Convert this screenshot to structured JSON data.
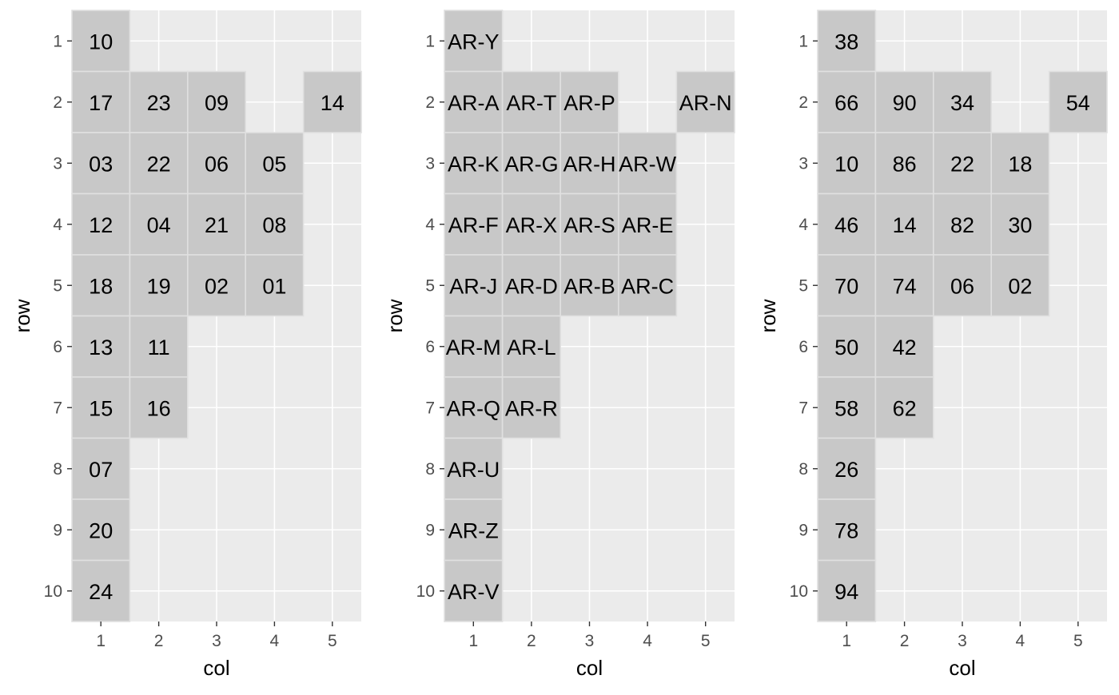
{
  "chart_data": [
    {
      "type": "heatmap",
      "xlabel": "col",
      "ylabel": "row",
      "x_ticks": [
        1,
        2,
        3,
        4,
        5
      ],
      "y_ticks": [
        1,
        2,
        3,
        4,
        5,
        6,
        7,
        8,
        9,
        10
      ],
      "xlim": [
        0.5,
        5.5
      ],
      "ylim": [
        10.5,
        0.5
      ],
      "grid": true,
      "cells": [
        {
          "row": 1,
          "col": 1,
          "label": "10"
        },
        {
          "row": 2,
          "col": 1,
          "label": "17"
        },
        {
          "row": 2,
          "col": 2,
          "label": "23"
        },
        {
          "row": 2,
          "col": 3,
          "label": "09"
        },
        {
          "row": 2,
          "col": 5,
          "label": "14"
        },
        {
          "row": 3,
          "col": 1,
          "label": "03"
        },
        {
          "row": 3,
          "col": 2,
          "label": "22"
        },
        {
          "row": 3,
          "col": 3,
          "label": "06"
        },
        {
          "row": 3,
          "col": 4,
          "label": "05"
        },
        {
          "row": 4,
          "col": 1,
          "label": "12"
        },
        {
          "row": 4,
          "col": 2,
          "label": "04"
        },
        {
          "row": 4,
          "col": 3,
          "label": "21"
        },
        {
          "row": 4,
          "col": 4,
          "label": "08"
        },
        {
          "row": 5,
          "col": 1,
          "label": "18"
        },
        {
          "row": 5,
          "col": 2,
          "label": "19"
        },
        {
          "row": 5,
          "col": 3,
          "label": "02"
        },
        {
          "row": 5,
          "col": 4,
          "label": "01"
        },
        {
          "row": 6,
          "col": 1,
          "label": "13"
        },
        {
          "row": 6,
          "col": 2,
          "label": "11"
        },
        {
          "row": 7,
          "col": 1,
          "label": "15"
        },
        {
          "row": 7,
          "col": 2,
          "label": "16"
        },
        {
          "row": 8,
          "col": 1,
          "label": "07"
        },
        {
          "row": 9,
          "col": 1,
          "label": "20"
        },
        {
          "row": 10,
          "col": 1,
          "label": "24"
        }
      ]
    },
    {
      "type": "heatmap",
      "xlabel": "col",
      "ylabel": "row",
      "x_ticks": [
        1,
        2,
        3,
        4,
        5
      ],
      "y_ticks": [
        1,
        2,
        3,
        4,
        5,
        6,
        7,
        8,
        9,
        10
      ],
      "xlim": [
        0.5,
        5.5
      ],
      "ylim": [
        10.5,
        0.5
      ],
      "grid": true,
      "cells": [
        {
          "row": 1,
          "col": 1,
          "label": "AR-Y"
        },
        {
          "row": 2,
          "col": 1,
          "label": "AR-A"
        },
        {
          "row": 2,
          "col": 2,
          "label": "AR-T"
        },
        {
          "row": 2,
          "col": 3,
          "label": "AR-P"
        },
        {
          "row": 2,
          "col": 5,
          "label": "AR-N"
        },
        {
          "row": 3,
          "col": 1,
          "label": "AR-K"
        },
        {
          "row": 3,
          "col": 2,
          "label": "AR-G"
        },
        {
          "row": 3,
          "col": 3,
          "label": "AR-H"
        },
        {
          "row": 3,
          "col": 4,
          "label": "AR-W"
        },
        {
          "row": 4,
          "col": 1,
          "label": "AR-F"
        },
        {
          "row": 4,
          "col": 2,
          "label": "AR-X"
        },
        {
          "row": 4,
          "col": 3,
          "label": "AR-S"
        },
        {
          "row": 4,
          "col": 4,
          "label": "AR-E"
        },
        {
          "row": 5,
          "col": 1,
          "label": "AR-J"
        },
        {
          "row": 5,
          "col": 2,
          "label": "AR-D"
        },
        {
          "row": 5,
          "col": 3,
          "label": "AR-B"
        },
        {
          "row": 5,
          "col": 4,
          "label": "AR-C"
        },
        {
          "row": 6,
          "col": 1,
          "label": "AR-M"
        },
        {
          "row": 6,
          "col": 2,
          "label": "AR-L"
        },
        {
          "row": 7,
          "col": 1,
          "label": "AR-Q"
        },
        {
          "row": 7,
          "col": 2,
          "label": "AR-R"
        },
        {
          "row": 8,
          "col": 1,
          "label": "AR-U"
        },
        {
          "row": 9,
          "col": 1,
          "label": "AR-Z"
        },
        {
          "row": 10,
          "col": 1,
          "label": "AR-V"
        }
      ]
    },
    {
      "type": "heatmap",
      "xlabel": "col",
      "ylabel": "row",
      "x_ticks": [
        1,
        2,
        3,
        4,
        5
      ],
      "y_ticks": [
        1,
        2,
        3,
        4,
        5,
        6,
        7,
        8,
        9,
        10
      ],
      "xlim": [
        0.5,
        5.5
      ],
      "ylim": [
        10.5,
        0.5
      ],
      "grid": true,
      "cells": [
        {
          "row": 1,
          "col": 1,
          "label": "38"
        },
        {
          "row": 2,
          "col": 1,
          "label": "66"
        },
        {
          "row": 2,
          "col": 2,
          "label": "90"
        },
        {
          "row": 2,
          "col": 3,
          "label": "34"
        },
        {
          "row": 2,
          "col": 5,
          "label": "54"
        },
        {
          "row": 3,
          "col": 1,
          "label": "10"
        },
        {
          "row": 3,
          "col": 2,
          "label": "86"
        },
        {
          "row": 3,
          "col": 3,
          "label": "22"
        },
        {
          "row": 3,
          "col": 4,
          "label": "18"
        },
        {
          "row": 4,
          "col": 1,
          "label": "46"
        },
        {
          "row": 4,
          "col": 2,
          "label": "14"
        },
        {
          "row": 4,
          "col": 3,
          "label": "82"
        },
        {
          "row": 4,
          "col": 4,
          "label": "30"
        },
        {
          "row": 5,
          "col": 1,
          "label": "70"
        },
        {
          "row": 5,
          "col": 2,
          "label": "74"
        },
        {
          "row": 5,
          "col": 3,
          "label": "06"
        },
        {
          "row": 5,
          "col": 4,
          "label": "02"
        },
        {
          "row": 6,
          "col": 1,
          "label": "50"
        },
        {
          "row": 6,
          "col": 2,
          "label": "42"
        },
        {
          "row": 7,
          "col": 1,
          "label": "58"
        },
        {
          "row": 7,
          "col": 2,
          "label": "62"
        },
        {
          "row": 8,
          "col": 1,
          "label": "26"
        },
        {
          "row": 9,
          "col": 1,
          "label": "78"
        },
        {
          "row": 10,
          "col": 1,
          "label": "94"
        }
      ]
    }
  ]
}
